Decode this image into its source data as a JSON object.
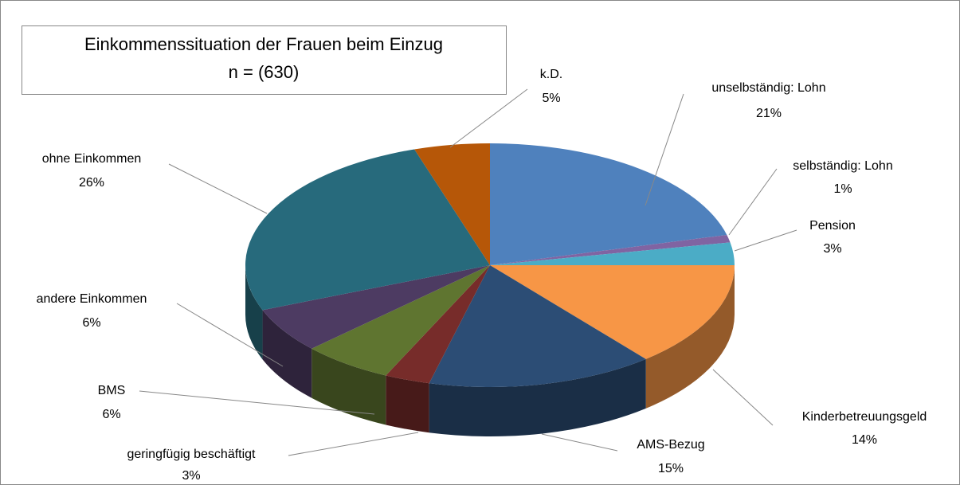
{
  "chart_data": {
    "type": "pie3d",
    "title": "Einkommenssituation der Frauen beim Einzug",
    "subtitle": "n = (630)",
    "categories": [
      "unselbständig: Lohn",
      "selbständig: Lohn",
      "Pension",
      "Kinderbetreuungsgeld",
      "AMS-Bezug",
      "geringfügig beschäftigt",
      "BMS",
      "andere Einkommen",
      "ohne Einkommen",
      "k.D."
    ],
    "values": [
      21,
      1,
      3,
      14,
      15,
      3,
      6,
      6,
      26,
      5
    ],
    "value_labels": [
      "21%",
      "1%",
      "3%",
      "14%",
      "15%",
      "3%",
      "6%",
      "6%",
      "26%",
      "5%"
    ],
    "colors": [
      "#4f81bd",
      "#8064a2",
      "#4bacc6",
      "#f79646",
      "#2c4d75",
      "#772c2a",
      "#5f7530",
      "#4d3b62",
      "#276a7c",
      "#b65708"
    ]
  }
}
